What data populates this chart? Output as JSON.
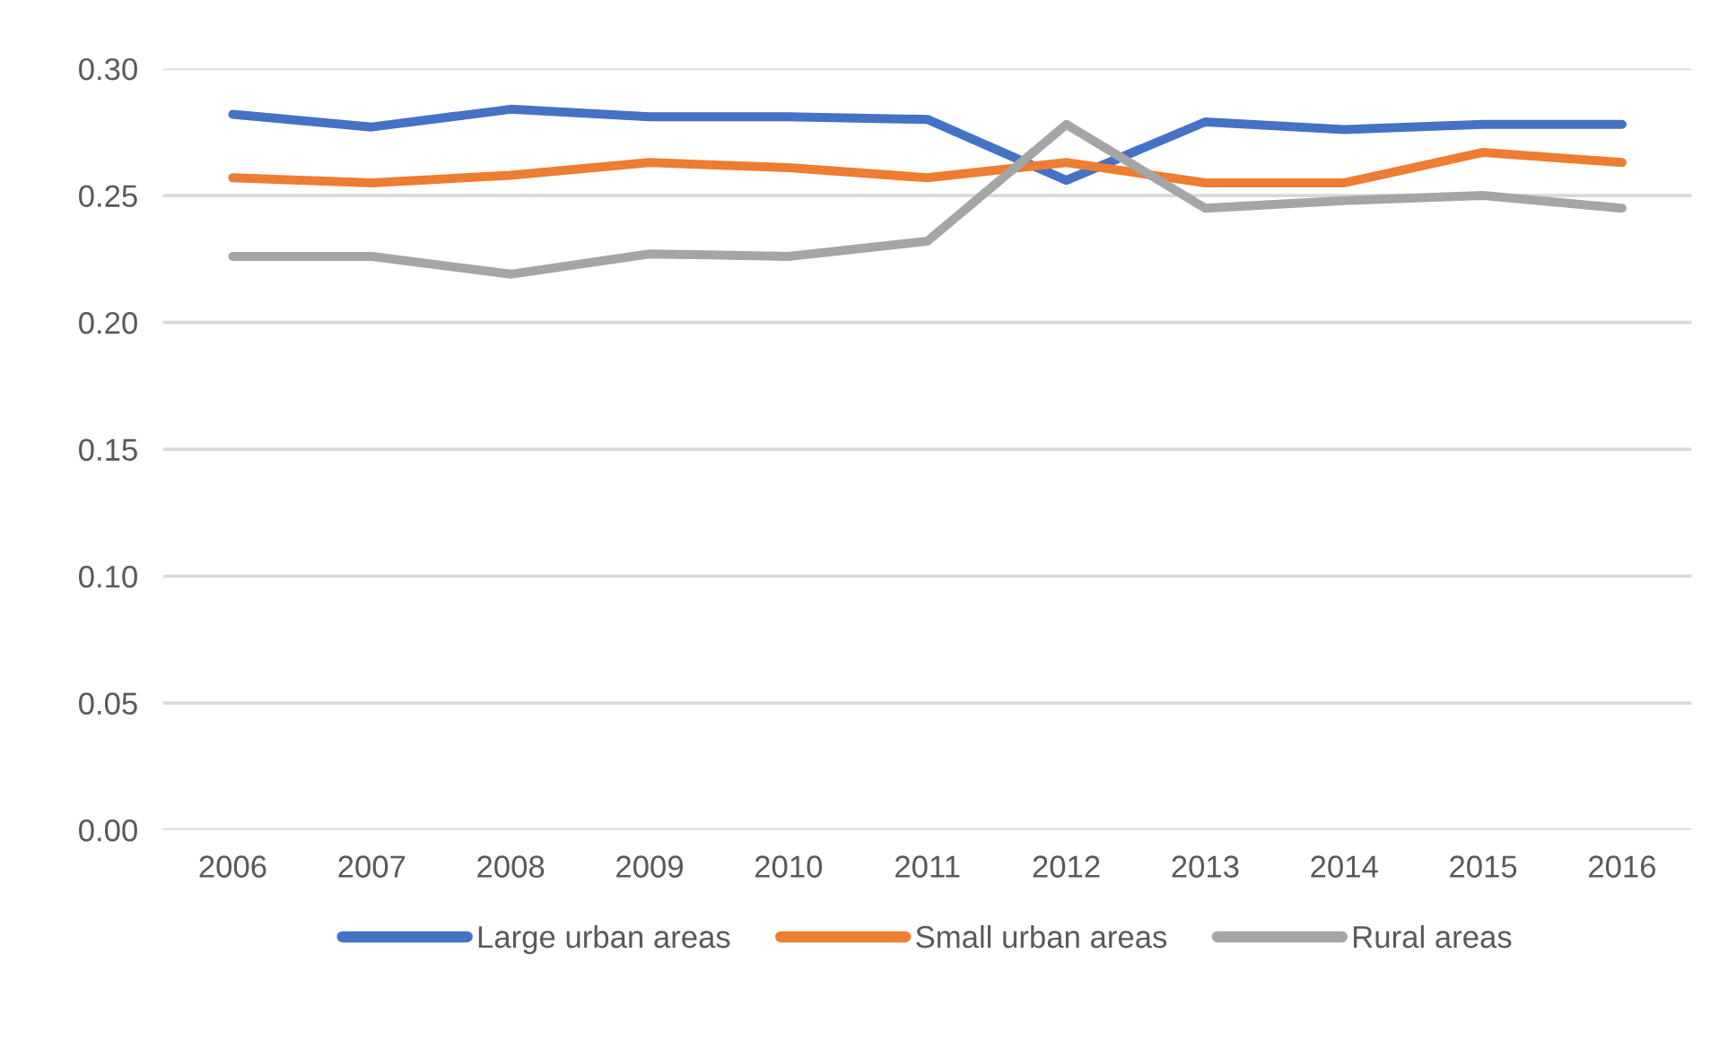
{
  "chart_data": {
    "type": "line",
    "categories": [
      "2006",
      "2007",
      "2008",
      "2009",
      "2010",
      "2011",
      "2012",
      "2013",
      "2014",
      "2015",
      "2016"
    ],
    "series": [
      {
        "name": "Large urban areas",
        "color": "#4472c4",
        "values": [
          0.282,
          0.277,
          0.284,
          0.281,
          0.281,
          0.28,
          0.256,
          0.279,
          0.276,
          0.278,
          0.278
        ]
      },
      {
        "name": "Small urban areas",
        "color": "#ed7d31",
        "values": [
          0.257,
          0.255,
          0.258,
          0.263,
          0.261,
          0.257,
          0.263,
          0.255,
          0.255,
          0.267,
          0.263
        ]
      },
      {
        "name": "Rural areas",
        "color": "#a5a5a5",
        "values": [
          0.226,
          0.226,
          0.219,
          0.227,
          0.226,
          0.232,
          0.278,
          0.245,
          0.248,
          0.25,
          0.245
        ]
      }
    ],
    "ylim": [
      0,
      0.3
    ],
    "yticks": [
      {
        "value": 0,
        "label": "0.00"
      },
      {
        "value": 0.05,
        "label": "0.05"
      },
      {
        "value": 0.1,
        "label": "0.10"
      },
      {
        "value": 0.15,
        "label": "0.15"
      },
      {
        "value": 0.2,
        "label": "0.20"
      },
      {
        "value": 0.25,
        "label": "0.25"
      },
      {
        "value": 0.3,
        "label": "0.30"
      }
    ],
    "grid": "y",
    "legend": "bottom",
    "marker": "none",
    "line_style": "solid"
  }
}
